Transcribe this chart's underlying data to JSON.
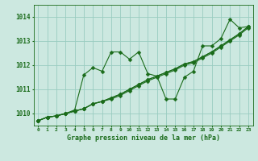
{
  "title": "Graphe pression niveau de la mer (hPa)",
  "background_color": "#cce8e0",
  "grid_color": "#99ccc0",
  "line_color": "#1a6b1a",
  "xlim": [
    -0.5,
    23.5
  ],
  "ylim": [
    1009.5,
    1014.5
  ],
  "yticks": [
    1010,
    1011,
    1012,
    1013,
    1014
  ],
  "xticks": [
    0,
    1,
    2,
    3,
    4,
    5,
    6,
    7,
    8,
    9,
    10,
    11,
    12,
    13,
    14,
    15,
    16,
    17,
    18,
    19,
    20,
    21,
    22,
    23
  ],
  "series_wiggly": [
    1009.7,
    1009.85,
    1009.9,
    1010.0,
    1010.15,
    1011.6,
    1011.9,
    1011.75,
    1012.55,
    1012.55,
    1012.25,
    1012.55,
    1011.65,
    1011.55,
    1010.6,
    1010.6,
    1011.5,
    1011.75,
    1012.8,
    1012.8,
    1013.1,
    1013.9,
    1013.55,
    1013.6
  ],
  "series_linear1": [
    1009.7,
    1009.85,
    1009.9,
    1010.0,
    1010.1,
    1010.2,
    1010.4,
    1010.5,
    1010.6,
    1010.75,
    1010.95,
    1011.15,
    1011.35,
    1011.5,
    1011.65,
    1011.8,
    1012.0,
    1012.1,
    1012.3,
    1012.5,
    1012.75,
    1013.0,
    1013.25,
    1013.55
  ],
  "series_linear2": [
    1009.7,
    1009.85,
    1009.9,
    1010.0,
    1010.1,
    1010.2,
    1010.4,
    1010.5,
    1010.65,
    1010.8,
    1011.0,
    1011.2,
    1011.4,
    1011.55,
    1011.7,
    1011.85,
    1012.05,
    1012.15,
    1012.35,
    1012.55,
    1012.8,
    1013.05,
    1013.3,
    1013.6
  ],
  "series_linear3": [
    1009.7,
    1009.85,
    1009.9,
    1010.0,
    1010.1,
    1010.2,
    1010.4,
    1010.5,
    1010.65,
    1010.8,
    1011.0,
    1011.2,
    1011.4,
    1011.55,
    1011.7,
    1011.85,
    1012.05,
    1012.15,
    1012.35,
    1012.55,
    1012.8,
    1013.05,
    1013.3,
    1013.6
  ],
  "marker": "D",
  "marker_size": 2.5,
  "line_width": 0.8
}
